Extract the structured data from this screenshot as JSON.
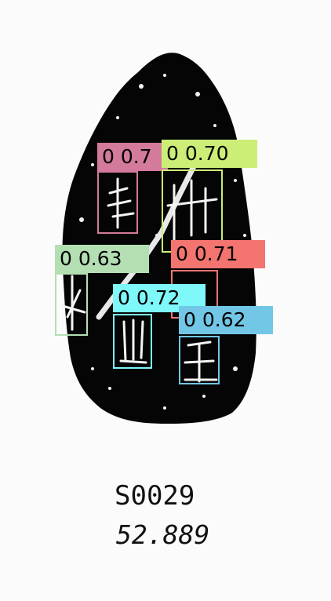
{
  "image": {
    "caption_id": "S0029",
    "caption_score": "52.889"
  },
  "detections": [
    {
      "class_id": "0",
      "score_text": "0.7",
      "color": "#d47a9c"
    },
    {
      "class_id": "0",
      "score_text": "0.70",
      "color": "#ccee77"
    },
    {
      "class_id": "0",
      "score_text": "0.71",
      "color": "#f47470"
    },
    {
      "class_id": "0",
      "score_text": "0.63",
      "color": "#b4dfb3"
    },
    {
      "class_id": "0",
      "score_text": "0.72",
      "color": "#7ef8f9"
    },
    {
      "class_id": "0",
      "score_text": "0.62",
      "color": "#72c7e6"
    }
  ]
}
